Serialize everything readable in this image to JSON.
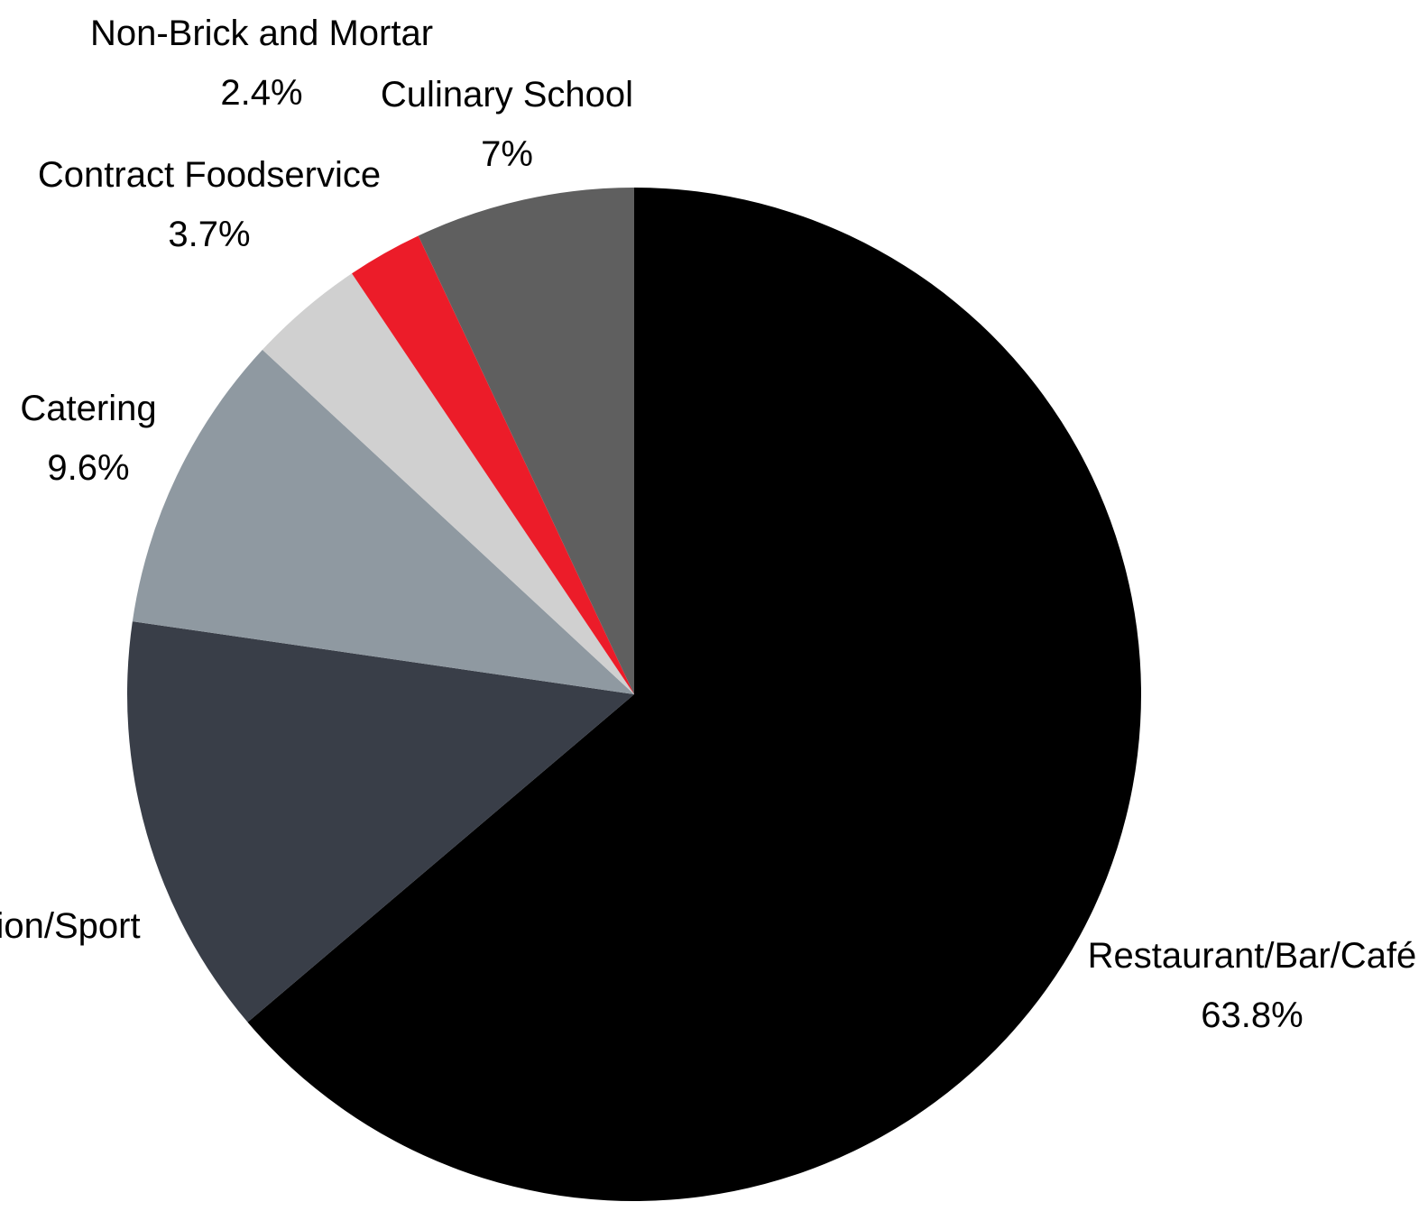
{
  "chart_data": {
    "type": "pie",
    "start": "12 o'clock",
    "direction": "clockwise",
    "slices": [
      {
        "label": "Restaurant/Bar/Café",
        "value": 63.8,
        "value_label": "63.8%",
        "color": "#000000"
      },
      {
        "label": "tion/Sport",
        "value": 13.5,
        "value_label": "",
        "color": "#393e48"
      },
      {
        "label": "Catering",
        "value": 9.6,
        "value_label": "9.6%",
        "color": "#8f99a1"
      },
      {
        "label": "Contract Foodservice",
        "value": 3.7,
        "value_label": "3.7%",
        "color": "#d0d0d0"
      },
      {
        "label": "Non-Brick and Mortar",
        "value": 2.4,
        "value_label": "2.4%",
        "color": "#ec1c29"
      },
      {
        "label": "Culinary School",
        "value": 7,
        "value_label": "7%",
        "color": "#5f5f5f"
      }
    ]
  }
}
